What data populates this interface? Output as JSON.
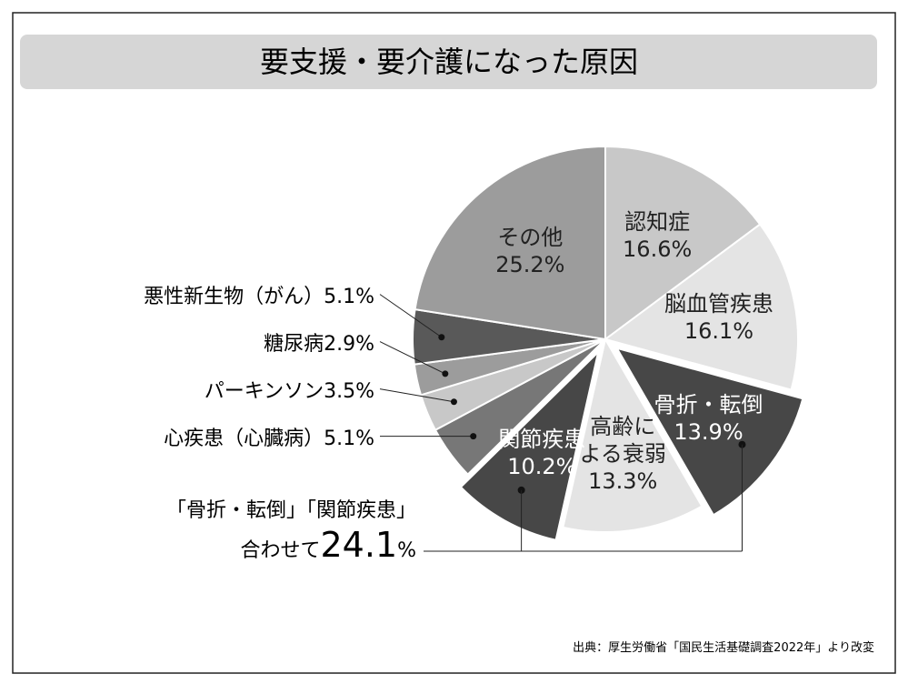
{
  "chart_data": {
    "type": "pie",
    "title": "要支援・要介護になった原因",
    "categories": [
      "認知症",
      "脳血管疾患",
      "骨折・転倒",
      "高齢に\nよる衰弱",
      "関節疾患",
      "心疾患（心臓病）",
      "パーキンソン",
      "糖尿病",
      "悪性新生物（がん）",
      "その他"
    ],
    "values": [
      16.6,
      16.1,
      13.9,
      13.3,
      10.2,
      5.1,
      3.5,
      2.9,
      5.1,
      25.2
    ],
    "value_labels": [
      "16.6%",
      "16.1%",
      "13.9%",
      "13.3%",
      "10.2%",
      "5.1%",
      "3.5%",
      "2.9%",
      "5.1%",
      "25.2%"
    ],
    "colors": [
      "#c8c8c8",
      "#e4e4e4",
      "#474747",
      "#e4e4e4",
      "#474747",
      "#777777",
      "#c8c8c8",
      "#9c9c9c",
      "#595959",
      "#9c9c9c"
    ],
    "explode": [
      false,
      false,
      true,
      false,
      true,
      false,
      false,
      false,
      false,
      false
    ],
    "annotation": {
      "line1": "「骨折・転倒」「関節疾患」",
      "line2": "合わせて",
      "value": "24.1",
      "unit": "%"
    },
    "source": "出典：厚生労働省「国民生活基礎調査2022年」より改変"
  }
}
